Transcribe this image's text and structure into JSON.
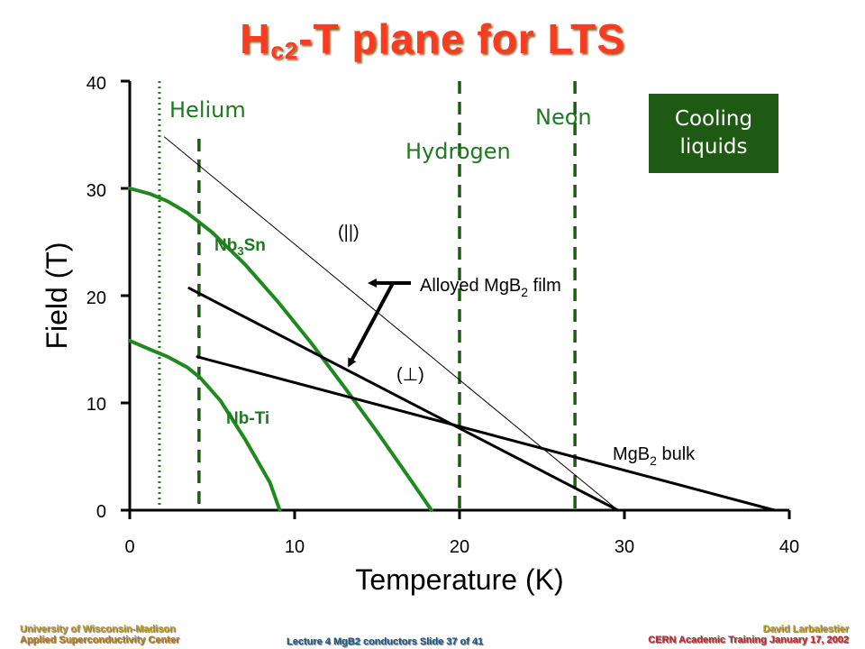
{
  "slide": {
    "title_main": "H",
    "title_sub": "c2",
    "title_rest": "-T plane for LTS"
  },
  "chart_data": {
    "type": "line",
    "xlabel": "Temperature (K)",
    "ylabel": "Field (T)",
    "xlim": [
      0,
      40
    ],
    "ylim": [
      0,
      40
    ],
    "xticks": [
      "0",
      "10",
      "20",
      "30",
      "40"
    ],
    "yticks": [
      "0",
      "10",
      "20",
      "30",
      "40"
    ],
    "grid": false,
    "series": [
      {
        "name": "Nb3Sn",
        "color": "#1e8a1e",
        "x": [
          0,
          1.2,
          2.3,
          3.5,
          5,
          7,
          9,
          11,
          13,
          15,
          17,
          18.3
        ],
        "y": [
          30,
          29.5,
          28.8,
          27.7,
          25.9,
          22.9,
          19.4,
          15.6,
          11.5,
          7.3,
          2.9,
          0
        ]
      },
      {
        "name": "Nb-Ti",
        "color": "#1e8a1e",
        "x": [
          0,
          1.2,
          2.3,
          3.5,
          4.3,
          5.5,
          7,
          8.5,
          9.1
        ],
        "y": [
          15.8,
          15.0,
          14.3,
          13.3,
          12.3,
          10.2,
          6.6,
          2.6,
          0
        ]
      },
      {
        "name": "(||)",
        "color": "#000000",
        "thin": true,
        "x": [
          2.1,
          29.6
        ],
        "y": [
          34.8,
          0
        ]
      },
      {
        "name": "(⊥)",
        "color": "#000000",
        "x": [
          3.6,
          29.6
        ],
        "y": [
          20.7,
          0
        ]
      },
      {
        "name": "MgB2 bulk",
        "color": "#000000",
        "x": [
          4.1,
          39.1
        ],
        "y": [
          14.3,
          0
        ]
      }
    ],
    "cooling_liquids": [
      {
        "name": "Helium",
        "x": 4.2,
        "style": "dashed"
      },
      {
        "name": "Hydrogen",
        "x": 20,
        "style": "dashed"
      },
      {
        "name": "Neon",
        "x": 27,
        "style": "dashed"
      },
      {
        "name": "",
        "x": 1.8,
        "style": "dotted"
      }
    ],
    "labels": {
      "helium": "Helium",
      "hydrogen": "Hydrogen",
      "neon": "Neon",
      "nb3sn_main": "Nb",
      "nb3sn_sub": "3",
      "nb3sn_rest": "Sn",
      "nbti": "Nb-Ti",
      "parallel": "(||)",
      "perp": "(⊥)",
      "film_main": "Alloyed MgB",
      "film_sub": "2",
      "film_rest": " film",
      "bulk_main": "MgB",
      "bulk_sub": "2",
      "bulk_rest": " bulk"
    },
    "cooling_box": [
      "Cooling",
      "liquids"
    ]
  },
  "footer": {
    "left_line1": "University of Wisconsin-Madison",
    "left_line2": "Applied  Superconductivity Center",
    "center": "Lecture 4 MgB2 conductors Slide 37 of 41",
    "right_line1": "David Larbalestier",
    "right_line2": "CERN Academic Training January 17, 2002"
  },
  "colors": {
    "title": "#ff3b1f",
    "superconductor": "#1e8a1e",
    "cooling_box": "#1e5a14",
    "footer_left": "#c49a1a",
    "footer_center": "#1a5a8a",
    "footer_right": "#c0282a"
  }
}
